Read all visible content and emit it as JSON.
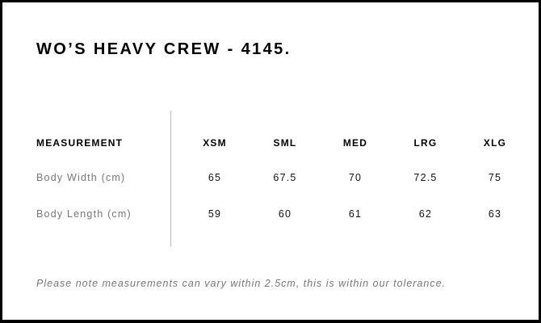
{
  "title": "WO’S HEAVY CREW - 4145.",
  "table": {
    "header_label": "MEASUREMENT",
    "sizes": [
      "XSM",
      "SML",
      "MED",
      "LRG",
      "XLG"
    ],
    "rows": [
      {
        "label": "Body Width (cm)",
        "values": [
          "65",
          "67.5",
          "70",
          "72.5",
          "75"
        ]
      },
      {
        "label": "Body Length (cm)",
        "values": [
          "59",
          "60",
          "61",
          "62",
          "63"
        ]
      }
    ]
  },
  "note": "Please note measurements can vary within 2.5cm, this is within our tolerance."
}
